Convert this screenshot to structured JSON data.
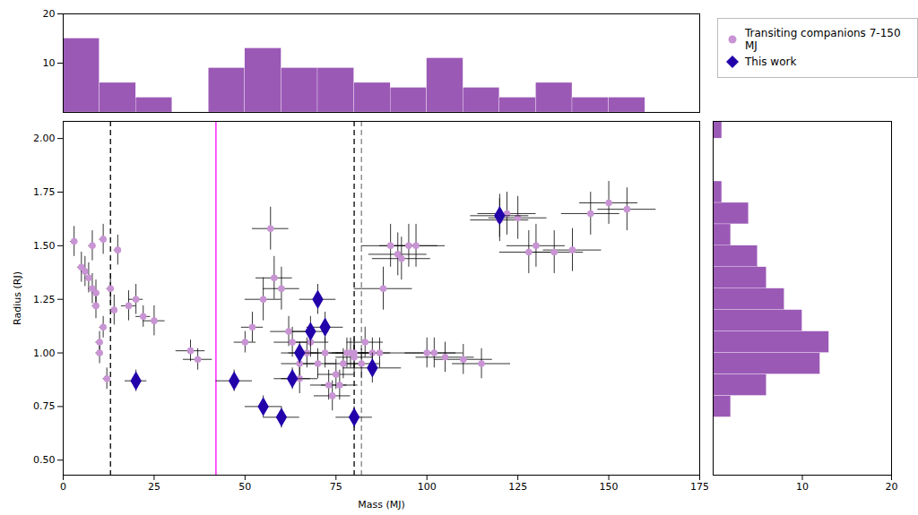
{
  "chart_data": [
    {
      "type": "scatter",
      "xlabel": "Mass (MJ)",
      "ylabel": "Radius (RJ)",
      "xlim": [
        0,
        175
      ],
      "ylim": [
        0.43,
        2.08
      ],
      "xticks": [
        0,
        25,
        50,
        75,
        100,
        125,
        150,
        175
      ],
      "yticks": [
        {
          "value": 0.5,
          "label": "0.50"
        },
        0.75,
        {
          "value": 1.0,
          "label": "1.00"
        },
        1.25,
        {
          "value": 1.5,
          "label": "1.50"
        },
        1.75,
        {
          "value": 2.0,
          "label": "2.00"
        }
      ],
      "legend": "upper right",
      "series": [
        {
          "name": "Transiting companions 7-150 MJ",
          "color": "#c994d4",
          "marker": "circle",
          "x": [
            3,
            5,
            6,
            7,
            8,
            8,
            9,
            9,
            10,
            10,
            11,
            11,
            12,
            13,
            14,
            15,
            18,
            20,
            22,
            25,
            35,
            37,
            50,
            52,
            55,
            57,
            58,
            60,
            62,
            63,
            65,
            65,
            67,
            68,
            70,
            72,
            73,
            74,
            75,
            76,
            77,
            78,
            79,
            80,
            80,
            82,
            83,
            85,
            87,
            88,
            90,
            92,
            93,
            95,
            97,
            100,
            102,
            105,
            110,
            115,
            120,
            122,
            125,
            128,
            130,
            135,
            140,
            145,
            150,
            155
          ],
          "values": [
            1.52,
            1.4,
            1.38,
            1.35,
            1.3,
            1.5,
            1.28,
            1.22,
            1.05,
            1.0,
            1.12,
            1.53,
            0.88,
            1.3,
            1.2,
            1.48,
            1.22,
            1.25,
            1.17,
            1.15,
            1.01,
            0.97,
            1.05,
            1.12,
            1.25,
            1.58,
            1.35,
            1.3,
            1.1,
            1.05,
            0.95,
            0.88,
            1.0,
            1.05,
            0.95,
            1.0,
            0.85,
            0.8,
            0.9,
            0.85,
            0.95,
            1.0,
            1.0,
            0.98,
            1.0,
            0.95,
            1.05,
            1.0,
            1.0,
            1.3,
            1.5,
            1.46,
            1.44,
            1.5,
            1.5,
            1.0,
            1.0,
            0.98,
            0.97,
            0.95,
            1.62,
            1.65,
            1.63,
            1.47,
            1.5,
            1.47,
            1.48,
            1.65,
            1.7,
            1.67
          ],
          "x_err": [
            1,
            1,
            1,
            1,
            1,
            1,
            1,
            1,
            1,
            1,
            1,
            1,
            1,
            1,
            1,
            1,
            2,
            2,
            2,
            3,
            4,
            4,
            3,
            3,
            5,
            5,
            5,
            5,
            5,
            5,
            5,
            5,
            5,
            5,
            5,
            5,
            5,
            5,
            5,
            5,
            5,
            5,
            5,
            5,
            5,
            5,
            5,
            5,
            5,
            8,
            8,
            8,
            8,
            8,
            8,
            8,
            8,
            8,
            8,
            8,
            8,
            8,
            8,
            8,
            8,
            8,
            8,
            8,
            8,
            8
          ],
          "y_err": [
            0.07,
            0.07,
            0.07,
            0.07,
            0.07,
            0.07,
            0.06,
            0.06,
            0.05,
            0.05,
            0.05,
            0.07,
            0.05,
            0.07,
            0.07,
            0.07,
            0.07,
            0.07,
            0.05,
            0.07,
            0.05,
            0.05,
            0.05,
            0.07,
            0.1,
            0.1,
            0.1,
            0.1,
            0.07,
            0.07,
            0.07,
            0.07,
            0.07,
            0.07,
            0.07,
            0.07,
            0.07,
            0.07,
            0.07,
            0.07,
            0.07,
            0.07,
            0.07,
            0.07,
            0.07,
            0.07,
            0.07,
            0.07,
            0.07,
            0.1,
            0.1,
            0.1,
            0.1,
            0.1,
            0.1,
            0.07,
            0.07,
            0.07,
            0.07,
            0.07,
            0.1,
            0.1,
            0.1,
            0.1,
            0.1,
            0.1,
            0.1,
            0.1,
            0.1,
            0.1
          ]
        },
        {
          "name": "This work",
          "color": "#2200aa",
          "marker": "diamond",
          "x": [
            20,
            47,
            55,
            60,
            63,
            65,
            68,
            70,
            72,
            80,
            85,
            120
          ],
          "values": [
            0.87,
            0.87,
            0.75,
            0.7,
            0.88,
            1.0,
            1.1,
            1.25,
            1.12,
            0.7,
            0.93,
            1.64
          ],
          "x_err": [
            3,
            5,
            5,
            5,
            5,
            5,
            5,
            5,
            5,
            5,
            8,
            8
          ],
          "y_err": [
            0.05,
            0.05,
            0.05,
            0.05,
            0.05,
            0.05,
            0.07,
            0.07,
            0.07,
            0.05,
            0.07,
            0.1
          ]
        }
      ],
      "vertical_lines": [
        {
          "x": 13,
          "color": "black",
          "line_style": "dashed"
        },
        {
          "x": 42,
          "color": "magenta",
          "line_style": "solid"
        },
        {
          "x": 80,
          "color": "black",
          "line_style": "dashed"
        },
        {
          "x": 82,
          "color": "gray",
          "line_style": "dashed"
        }
      ]
    },
    {
      "type": "histogram",
      "bins": [
        0,
        10,
        20,
        30,
        40,
        50,
        60,
        70,
        80,
        90,
        100,
        110,
        120,
        130,
        140,
        150,
        160
      ],
      "counts": [
        15,
        6,
        3,
        0,
        9,
        13,
        9,
        9,
        6,
        5,
        11,
        5,
        3,
        6,
        3,
        3
      ],
      "color": "#9b59b6",
      "xlim": [
        0,
        175
      ],
      "ylim": [
        0,
        20
      ],
      "yticks": [
        10,
        20
      ],
      "tick_labels": "y"
    },
    {
      "type": "histogram",
      "orientation": "horizontal",
      "bins": [
        0.7,
        0.8,
        0.9,
        1.0,
        1.1,
        1.2,
        1.3,
        1.4,
        1.5,
        1.6,
        1.7,
        1.8,
        1.9,
        2.0,
        2.1
      ],
      "counts": [
        2,
        6,
        12,
        13,
        10,
        8,
        6,
        5,
        2,
        4,
        1,
        0,
        0,
        1
      ],
      "color": "#9b59b6",
      "xlim": [
        0,
        20
      ],
      "ylim": [
        0.43,
        2.08
      ],
      "xticks": [
        10,
        20
      ],
      "tick_labels": "x"
    }
  ]
}
